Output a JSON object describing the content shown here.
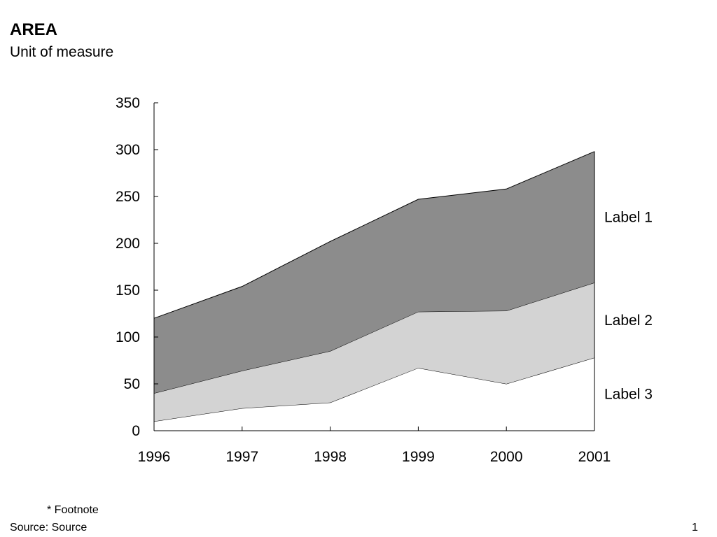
{
  "header": {
    "title": "AREA",
    "subtitle": "Unit of measure"
  },
  "footer": {
    "footnote": "* Footnote",
    "source": "Source: Source",
    "page_number": "1"
  },
  "chart_data": {
    "type": "area",
    "stacked": true,
    "x": [
      "1996",
      "1997",
      "1998",
      "1999",
      "2000",
      "2001"
    ],
    "ylim": [
      0,
      350
    ],
    "yticks": [
      0,
      50,
      100,
      150,
      200,
      250,
      300,
      350
    ],
    "grid": false,
    "legend": "inline-right",
    "series": [
      {
        "name": "Label 3",
        "values": [
          10,
          24,
          30,
          67,
          50,
          78
        ],
        "color": "#ffffff"
      },
      {
        "name": "Label 2",
        "values": [
          30,
          40,
          55,
          60,
          78,
          80
        ],
        "color": "#d3d3d3"
      },
      {
        "name": "Label 1",
        "values": [
          80,
          90,
          117,
          120,
          130,
          140
        ],
        "color": "#8c8c8c"
      }
    ]
  }
}
